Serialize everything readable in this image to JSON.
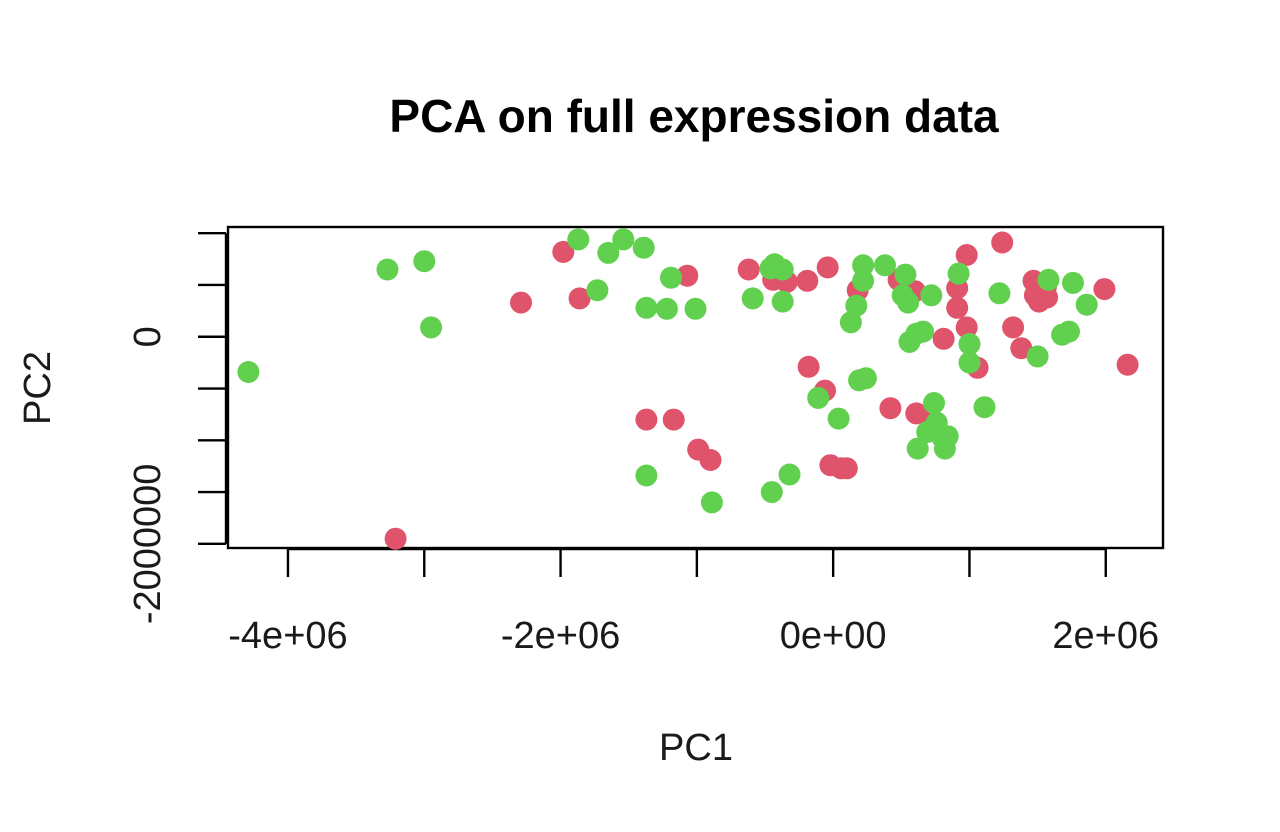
{
  "chart_data": {
    "type": "scatter",
    "title": "PCA on full expression data",
    "xlabel": "PC1",
    "ylabel": "PC2",
    "xlim": [
      -4440000,
      2420000
    ],
    "ylim": [
      -2040000,
      1060000
    ],
    "x_ticks": [
      {
        "value": -4000000,
        "label": "-4e+06"
      },
      {
        "value": -3000000,
        "label": ""
      },
      {
        "value": -2000000,
        "label": "-2e+06"
      },
      {
        "value": -1000000,
        "label": ""
      },
      {
        "value": 0,
        "label": "0e+00"
      },
      {
        "value": 1000000,
        "label": ""
      },
      {
        "value": 2000000,
        "label": "2e+06"
      }
    ],
    "y_ticks": [
      {
        "value": -2000000,
        "label": "-2000000"
      },
      {
        "value": -1500000,
        "label": ""
      },
      {
        "value": -1000000,
        "label": ""
      },
      {
        "value": -500000,
        "label": ""
      },
      {
        "value": 0,
        "label": "0"
      },
      {
        "value": 500000,
        "label": ""
      },
      {
        "value": 1000000,
        "label": ""
      }
    ],
    "grid": false,
    "legend": "none",
    "series": [
      {
        "color": "#DF536B",
        "points": [
          [
            -3210000,
            -1950000
          ],
          [
            -2290000,
            330000
          ],
          [
            -1980000,
            820000
          ],
          [
            -1860000,
            370000
          ],
          [
            -1370000,
            -800000
          ],
          [
            -1170000,
            -800000
          ],
          [
            -1070000,
            590000
          ],
          [
            -990000,
            -1090000
          ],
          [
            -900000,
            -1190000
          ],
          [
            -620000,
            650000
          ],
          [
            -440000,
            550000
          ],
          [
            -340000,
            530000
          ],
          [
            -190000,
            540000
          ],
          [
            -180000,
            -290000
          ],
          [
            -60000,
            -520000
          ],
          [
            -40000,
            670000
          ],
          [
            -20000,
            -1240000
          ],
          [
            60000,
            -1270000
          ],
          [
            100000,
            -1270000
          ],
          [
            180000,
            450000
          ],
          [
            420000,
            -690000
          ],
          [
            480000,
            550000
          ],
          [
            600000,
            440000
          ],
          [
            610000,
            -740000
          ],
          [
            700000,
            -770000
          ],
          [
            810000,
            -20000
          ],
          [
            910000,
            470000
          ],
          [
            910000,
            280000
          ],
          [
            980000,
            90000
          ],
          [
            980000,
            790000
          ],
          [
            1060000,
            -300000
          ],
          [
            1240000,
            910000
          ],
          [
            1320000,
            90000
          ],
          [
            1380000,
            -110000
          ],
          [
            1470000,
            540000
          ],
          [
            1480000,
            400000
          ],
          [
            1510000,
            340000
          ],
          [
            1560000,
            480000
          ],
          [
            1570000,
            380000
          ],
          [
            1990000,
            460000
          ],
          [
            2160000,
            -270000
          ]
        ]
      },
      {
        "color": "#61D04F",
        "points": [
          [
            -4290000,
            -340000
          ],
          [
            -3270000,
            650000
          ],
          [
            -3000000,
            730000
          ],
          [
            -2950000,
            90000
          ],
          [
            -1870000,
            940000
          ],
          [
            -1730000,
            450000
          ],
          [
            -1650000,
            810000
          ],
          [
            -1540000,
            940000
          ],
          [
            -1390000,
            860000
          ],
          [
            -1370000,
            280000
          ],
          [
            -1220000,
            270000
          ],
          [
            -1190000,
            570000
          ],
          [
            -1370000,
            -1340000
          ],
          [
            -1010000,
            270000
          ],
          [
            -890000,
            -1600000
          ],
          [
            -590000,
            370000
          ],
          [
            -460000,
            660000
          ],
          [
            -430000,
            700000
          ],
          [
            -370000,
            650000
          ],
          [
            -370000,
            340000
          ],
          [
            -450000,
            -1500000
          ],
          [
            -320000,
            -1330000
          ],
          [
            -110000,
            -590000
          ],
          [
            40000,
            -790000
          ],
          [
            130000,
            140000
          ],
          [
            170000,
            300000
          ],
          [
            190000,
            -420000
          ],
          [
            220000,
            690000
          ],
          [
            220000,
            540000
          ],
          [
            240000,
            -400000
          ],
          [
            380000,
            690000
          ],
          [
            530000,
            600000
          ],
          [
            510000,
            400000
          ],
          [
            550000,
            330000
          ],
          [
            560000,
            -50000
          ],
          [
            610000,
            30000
          ],
          [
            660000,
            50000
          ],
          [
            620000,
            -1080000
          ],
          [
            690000,
            -920000
          ],
          [
            720000,
            400000
          ],
          [
            740000,
            -640000
          ],
          [
            760000,
            -830000
          ],
          [
            800000,
            -970000
          ],
          [
            820000,
            -1080000
          ],
          [
            840000,
            -960000
          ],
          [
            920000,
            610000
          ],
          [
            1000000,
            -70000
          ],
          [
            1000000,
            -250000
          ],
          [
            1110000,
            -680000
          ],
          [
            1220000,
            420000
          ],
          [
            1500000,
            -190000
          ],
          [
            1580000,
            550000
          ],
          [
            1680000,
            20000
          ],
          [
            1730000,
            50000
          ],
          [
            1760000,
            520000
          ],
          [
            1860000,
            310000
          ]
        ]
      }
    ]
  }
}
